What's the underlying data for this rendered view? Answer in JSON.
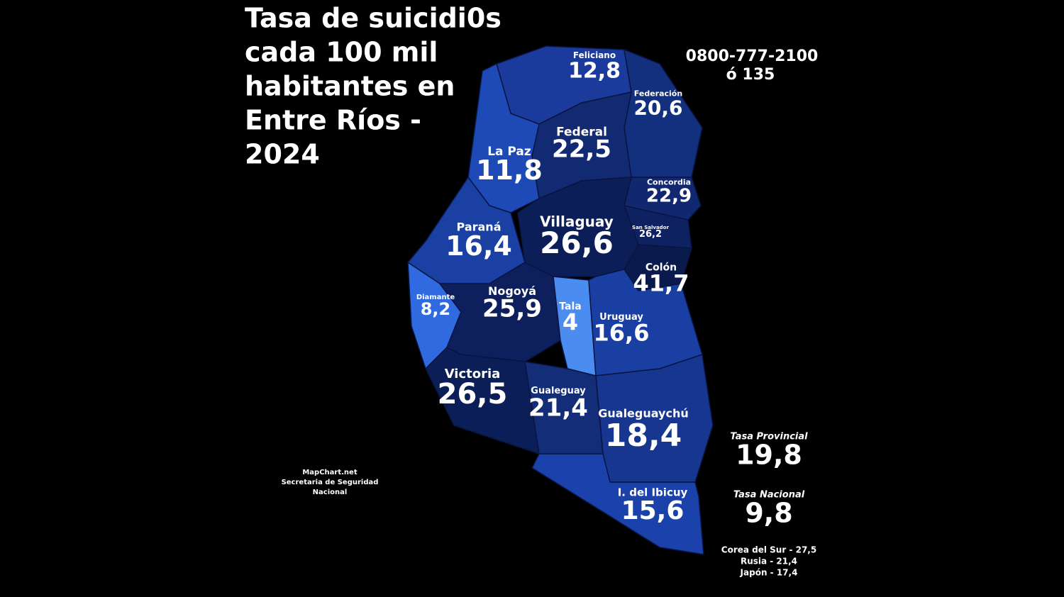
{
  "title": [
    "Tasa de suicidi0s",
    "cada 100 mil",
    "habitantes en",
    "Entre Ríos -",
    "2024"
  ],
  "helpline": [
    "0800-777-2100",
    "ó 135"
  ],
  "departments": [
    {
      "name": "Feliciano",
      "value": "12,8",
      "color": "#1a3a9c"
    },
    {
      "name": "Federación",
      "value": "20,6",
      "color": "#13307f"
    },
    {
      "name": "Federal",
      "value": "22,5",
      "color": "#122a72"
    },
    {
      "name": "La Paz",
      "value": "11,8",
      "color": "#1e4ab8"
    },
    {
      "name": "Concordia",
      "value": "22,9",
      "color": "#112870"
    },
    {
      "name": "San Salvador",
      "value": "26,2",
      "color": "#0e2160"
    },
    {
      "name": "Colón",
      "value": "41,7",
      "color": "#0a1a4c"
    },
    {
      "name": "Villaguay",
      "value": "26,6",
      "color": "#0c1e58"
    },
    {
      "name": "Paraná",
      "value": "16,4",
      "color": "#1a40a4"
    },
    {
      "name": "Diamante",
      "value": "8,2",
      "color": "#2f6ae0"
    },
    {
      "name": "Nogoyá",
      "value": "25,9",
      "color": "#0d1f5c"
    },
    {
      "name": "Tala",
      "value": "4",
      "color": "#4a8cf0"
    },
    {
      "name": "Uruguay",
      "value": "16,6",
      "color": "#1a3fa2"
    },
    {
      "name": "Victoria",
      "value": "26,5",
      "color": "#0c1e58"
    },
    {
      "name": "Gualeguay",
      "value": "21,4",
      "color": "#132d78"
    },
    {
      "name": "Gualeguaychú",
      "value": "18,4",
      "color": "#17368f"
    },
    {
      "name": "I. del Ibicuy",
      "value": "15,6",
      "color": "#1b42aa"
    }
  ],
  "summary": [
    {
      "label": "Tasa Provincial",
      "value": "19,8"
    },
    {
      "label": "Tasa Nacional",
      "value": "9,8"
    }
  ],
  "comparisons": [
    "Corea del Sur - 27,5",
    "Rusia - 21,4",
    "Japón - 17,4"
  ],
  "credits": [
    "MapChart.net",
    "Secretaria de Seguridad",
    "Nacional"
  ]
}
